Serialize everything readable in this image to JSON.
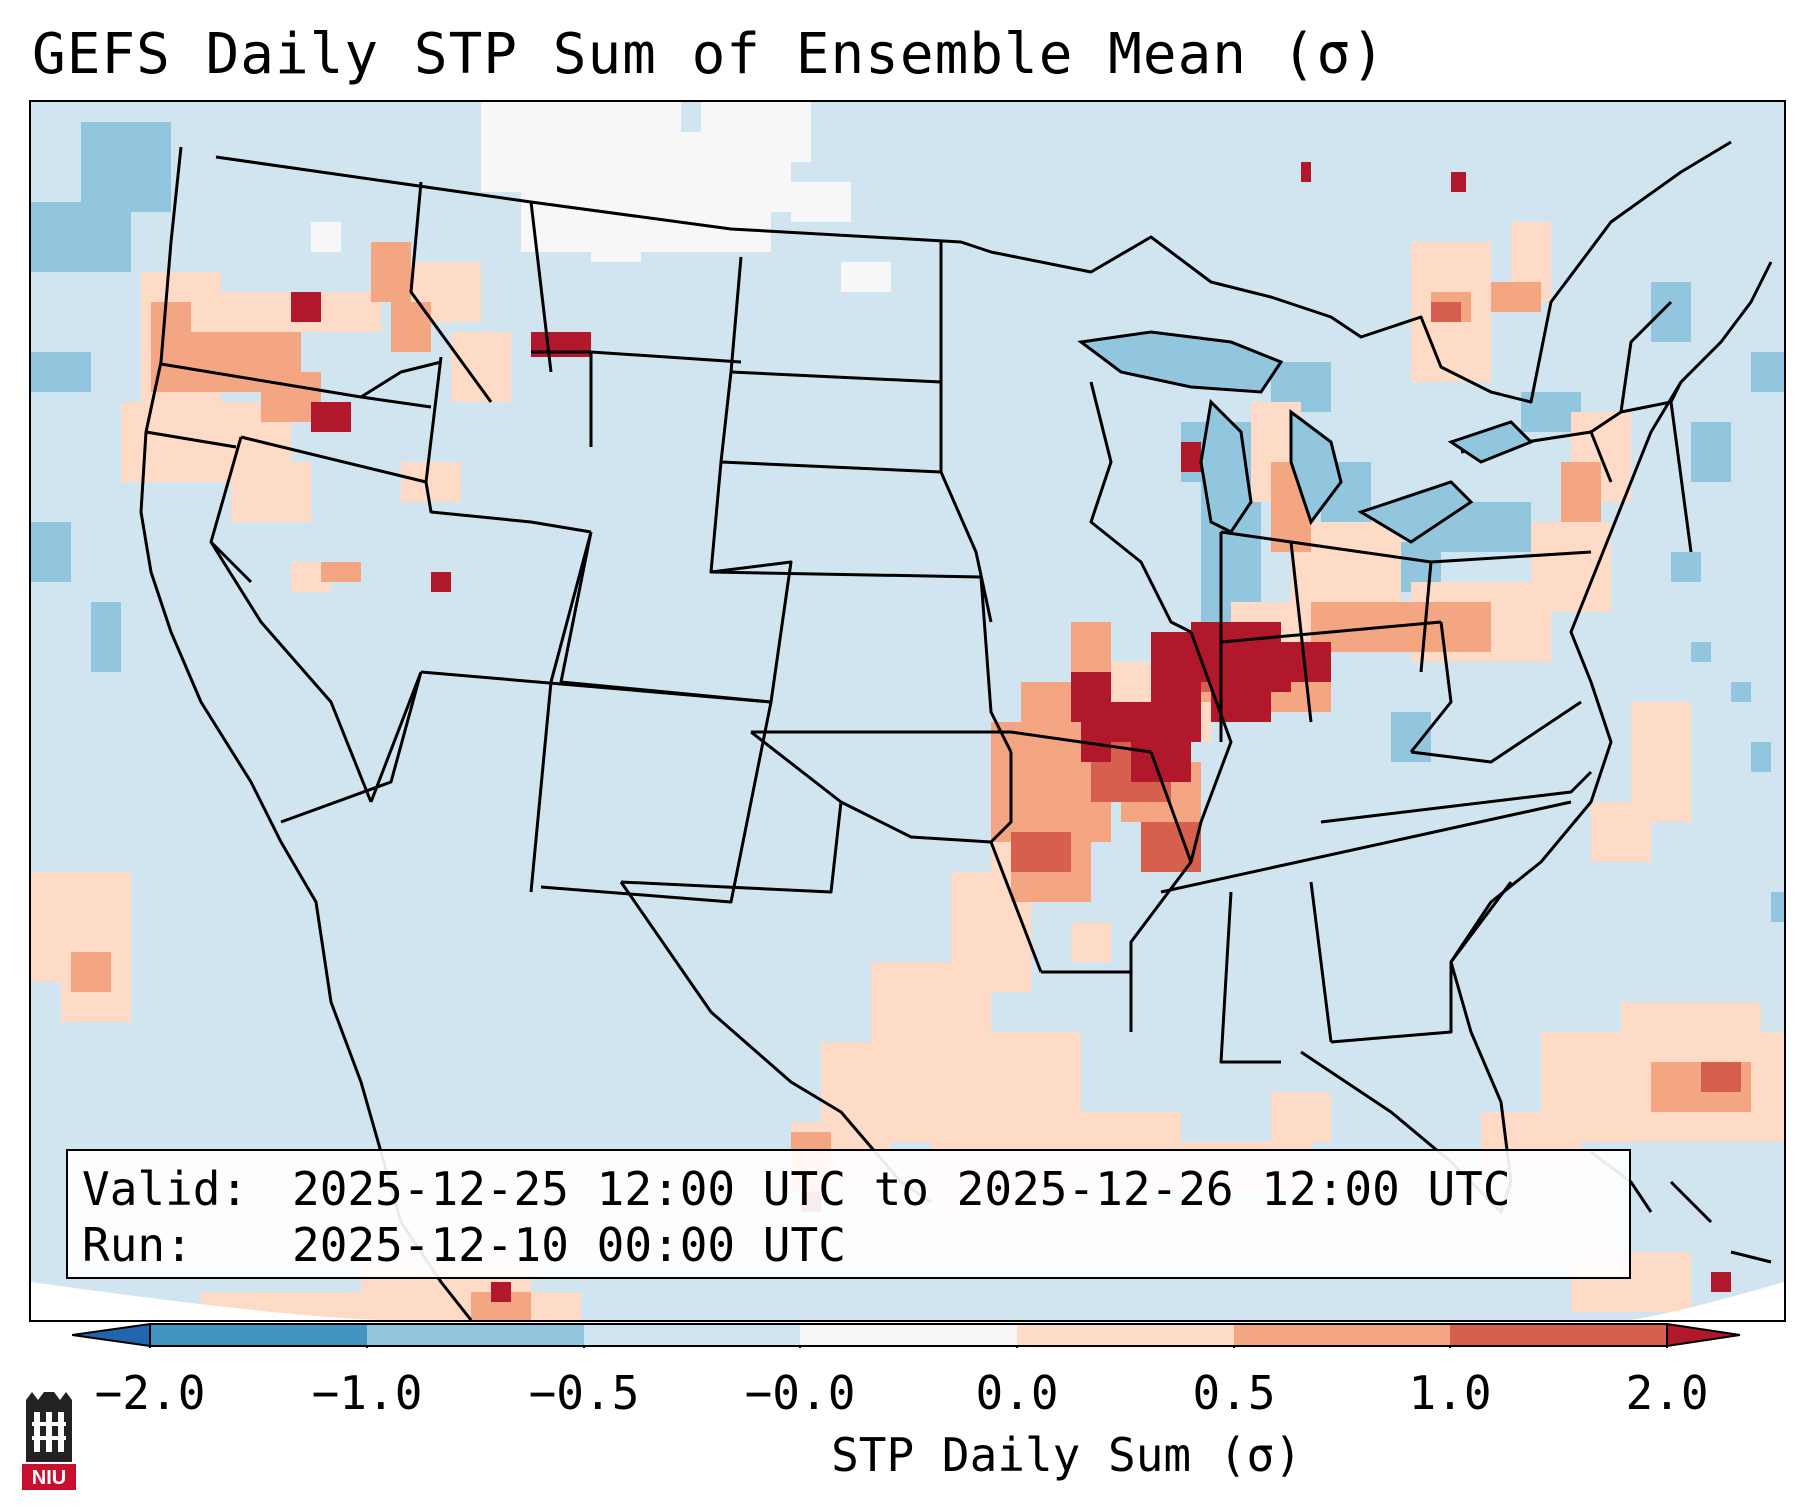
{
  "title": "GEFS Daily STP Sum of Ensemble Mean (σ)",
  "info": {
    "valid_label": "Valid:",
    "valid_value": "2025-12-25 12:00 UTC to 2025-12-26 12:00 UTC",
    "run_label": "Run:",
    "run_value": "2025-12-10 00:00 UTC"
  },
  "colorbar": {
    "label": "STP Daily Sum (σ)",
    "ticks": [
      "−2.0",
      "−1.0",
      "−0.5",
      "−0.0",
      "0.0",
      "0.5",
      "1.0",
      "2.0"
    ],
    "colors": [
      "#4393c3",
      "#92c5de",
      "#d1e5f0",
      "#f7f7f7",
      "#fddbc7",
      "#f4a582",
      "#d6604d"
    ],
    "under_color": "#2166ac",
    "over_color": "#b2182b"
  },
  "map": {
    "region": "Contiguous United States",
    "ocean_land_fill": "#d1e5f0",
    "highlight_regions": [
      {
        "name": "Mid-Mississippi Valley / Ohio Valley",
        "category": "2.0"
      },
      {
        "name": "Lower Mississippi Valley",
        "category": "1.0"
      },
      {
        "name": "Texas Gulf Coast",
        "category": "0.5"
      },
      {
        "name": "Pacific Northwest",
        "category": "0.5"
      },
      {
        "name": "Great Lakes",
        "category": "−1.0"
      }
    ]
  },
  "logo": {
    "text": "NIU",
    "colors": [
      "#c8102e",
      "#000000"
    ]
  }
}
